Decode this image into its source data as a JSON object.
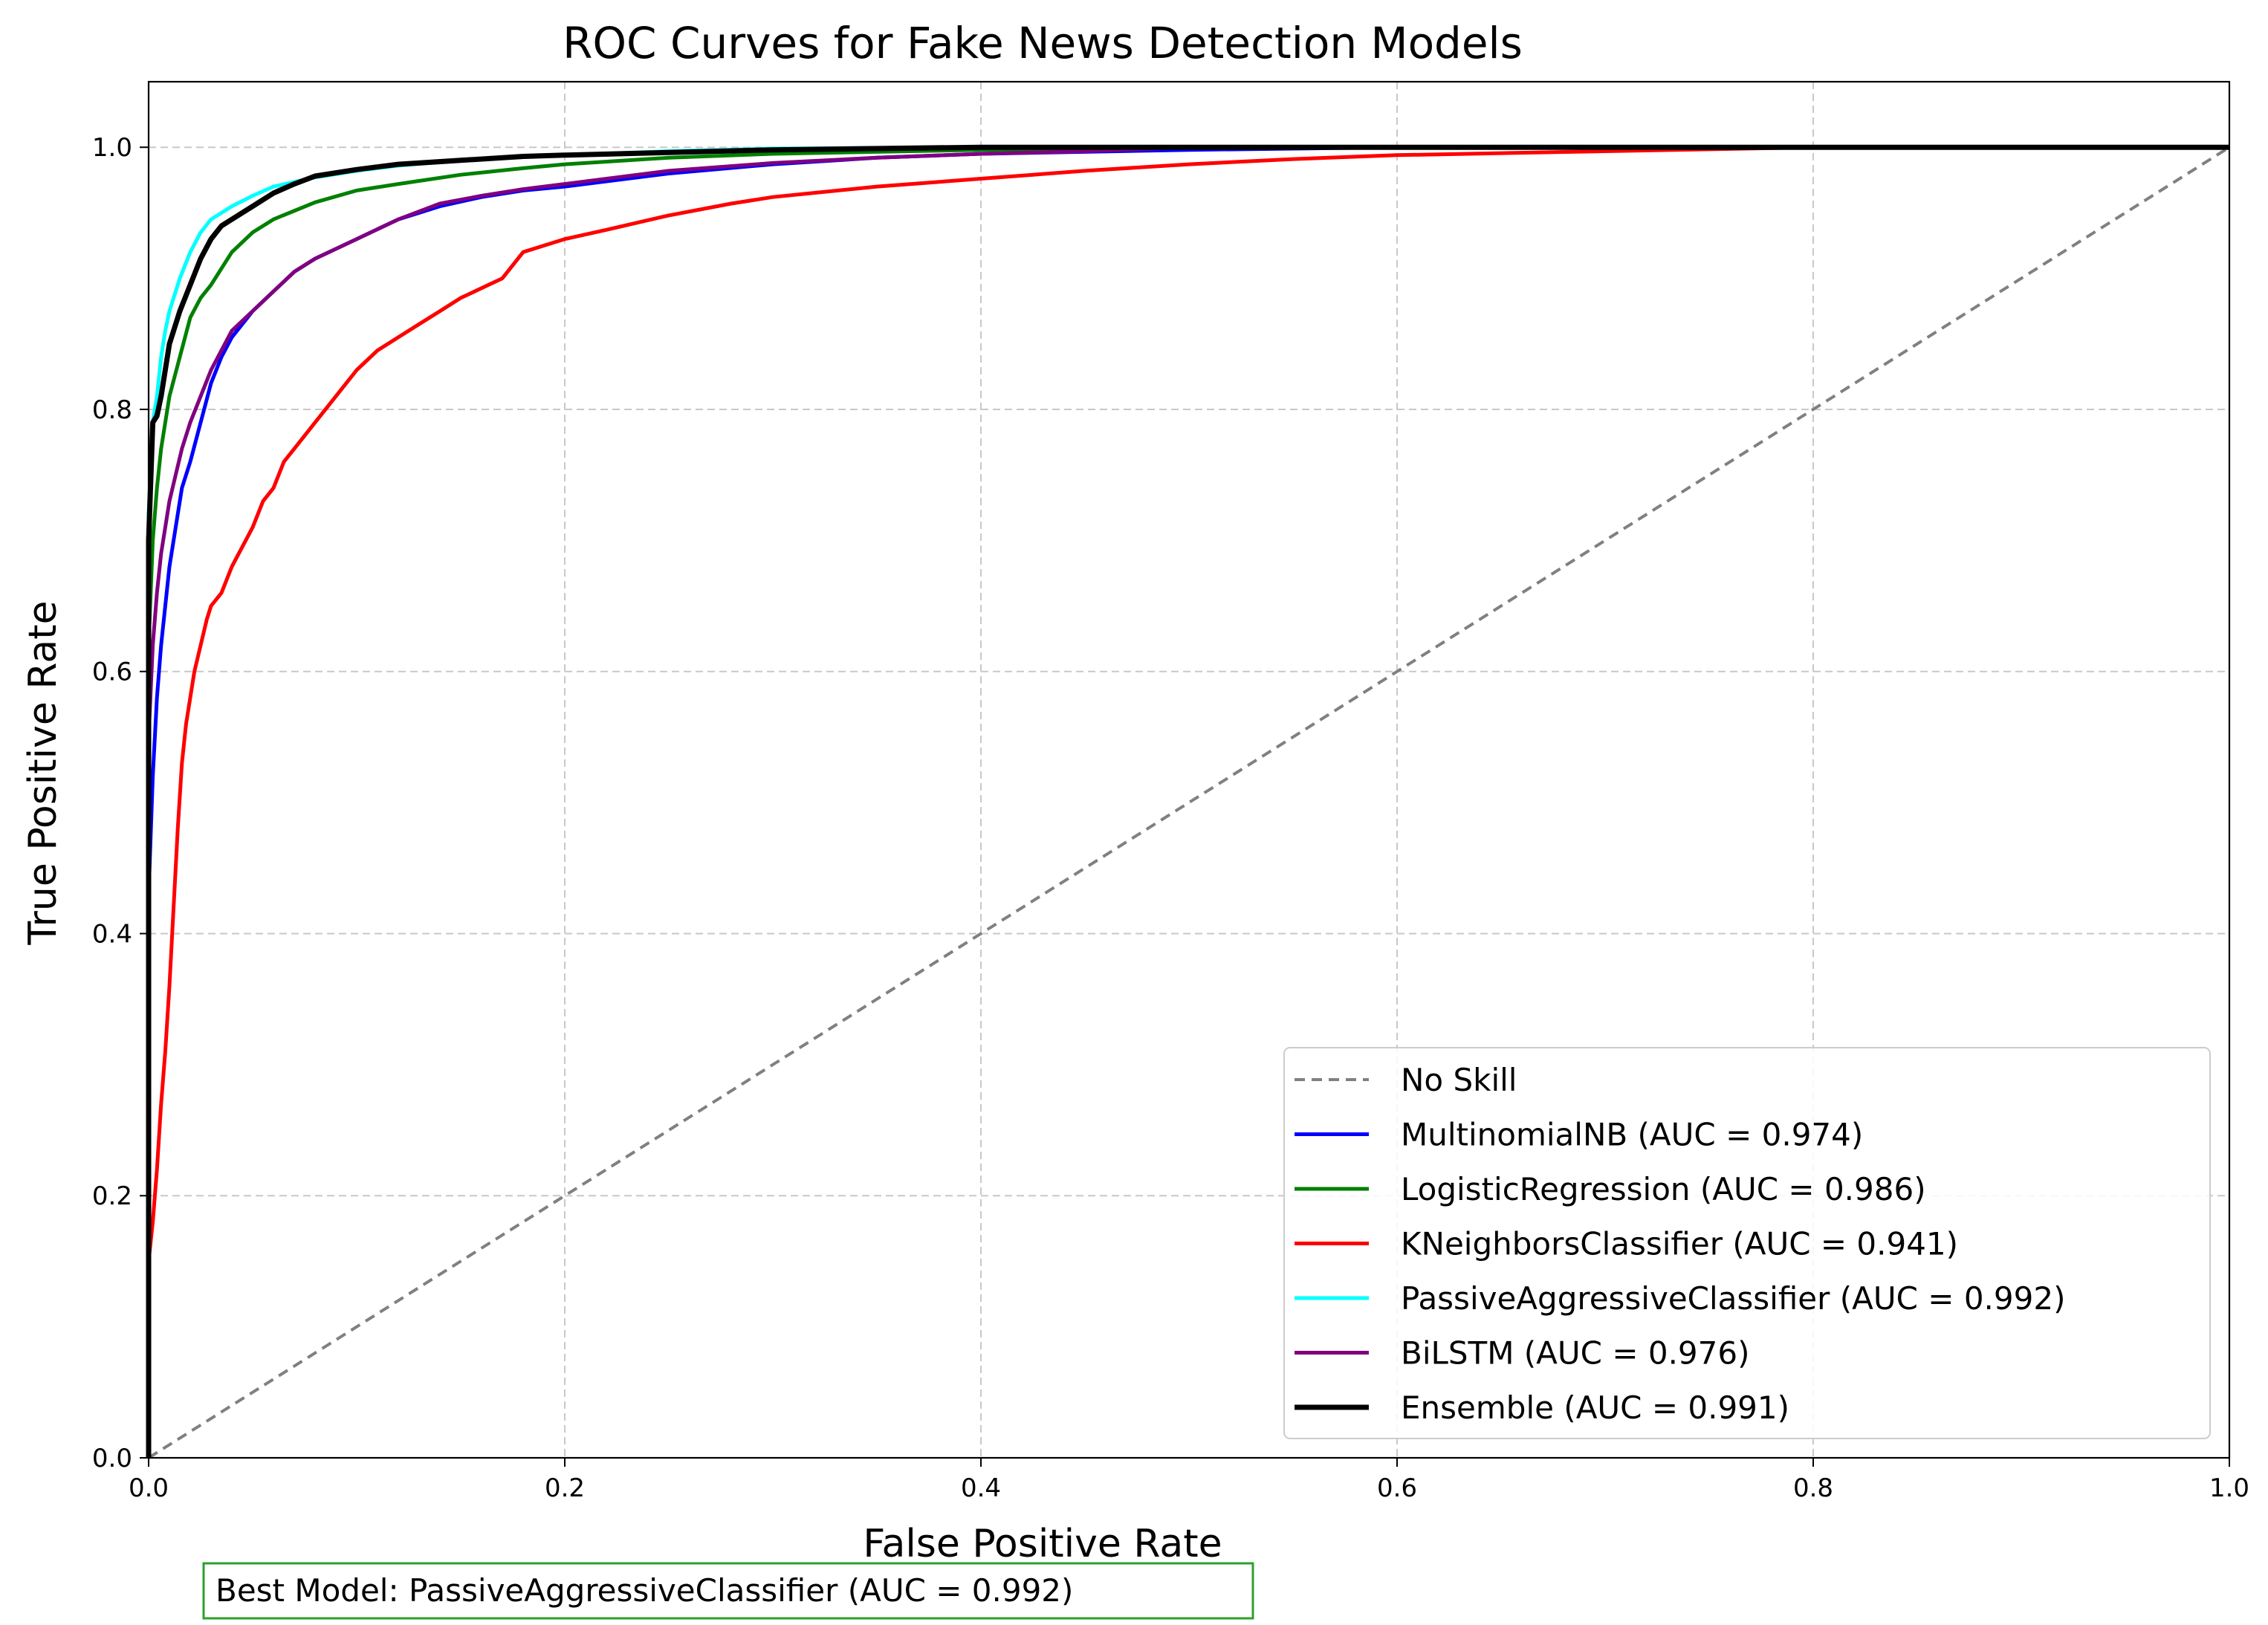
{
  "chart_data": {
    "type": "line",
    "title": "ROC Curves for Fake News Detection Models",
    "xlabel": "False Positive Rate",
    "ylabel": "True Positive Rate",
    "xlim": [
      0.0,
      1.0
    ],
    "ylim": [
      0.0,
      1.05
    ],
    "x_ticks": [
      "0.0",
      "0.2",
      "0.4",
      "0.6",
      "0.8",
      "1.0"
    ],
    "y_ticks": [
      "0.0",
      "0.2",
      "0.4",
      "0.6",
      "0.8",
      "1.0"
    ],
    "grid": true,
    "legend_position": "lower-right",
    "series": [
      {
        "name": "No Skill",
        "color": "#808080",
        "style": "dashed",
        "x": [
          0.0,
          1.0
        ],
        "y": [
          0.0,
          1.0
        ]
      },
      {
        "name": "MultinomialNB (AUC = 0.974)",
        "color": "#0000ff",
        "style": "solid",
        "x": [
          0.0,
          0.0,
          0.002,
          0.004,
          0.006,
          0.008,
          0.01,
          0.013,
          0.016,
          0.02,
          0.025,
          0.03,
          0.035,
          0.04,
          0.05,
          0.06,
          0.07,
          0.08,
          0.1,
          0.12,
          0.14,
          0.16,
          0.18,
          0.2,
          0.25,
          0.3,
          0.35,
          0.4,
          0.5,
          0.6,
          1.0
        ],
        "y": [
          0.0,
          0.43,
          0.52,
          0.58,
          0.62,
          0.65,
          0.68,
          0.71,
          0.74,
          0.76,
          0.79,
          0.82,
          0.84,
          0.855,
          0.875,
          0.89,
          0.905,
          0.915,
          0.93,
          0.945,
          0.955,
          0.962,
          0.967,
          0.97,
          0.98,
          0.987,
          0.992,
          0.995,
          0.998,
          1.0,
          1.0
        ]
      },
      {
        "name": "LogisticRegression (AUC = 0.986)",
        "color": "#008000",
        "style": "solid",
        "x": [
          0.0,
          0.0,
          0.002,
          0.004,
          0.006,
          0.008,
          0.01,
          0.015,
          0.02,
          0.025,
          0.03,
          0.04,
          0.05,
          0.06,
          0.08,
          0.1,
          0.12,
          0.15,
          0.18,
          0.2,
          0.25,
          0.3,
          0.4,
          0.5,
          1.0
        ],
        "y": [
          0.0,
          0.62,
          0.7,
          0.74,
          0.77,
          0.79,
          0.81,
          0.84,
          0.87,
          0.885,
          0.895,
          0.92,
          0.935,
          0.945,
          0.958,
          0.967,
          0.972,
          0.979,
          0.984,
          0.987,
          0.992,
          0.995,
          0.998,
          1.0,
          1.0
        ]
      },
      {
        "name": "KNeighborsClassifier (AUC = 0.941)",
        "color": "#ff0000",
        "style": "solid",
        "x": [
          0.0,
          0.0,
          0.002,
          0.004,
          0.006,
          0.008,
          0.01,
          0.012,
          0.014,
          0.016,
          0.018,
          0.02,
          0.022,
          0.025,
          0.028,
          0.03,
          0.035,
          0.04,
          0.05,
          0.055,
          0.06,
          0.065,
          0.07,
          0.08,
          0.09,
          0.1,
          0.11,
          0.12,
          0.13,
          0.14,
          0.15,
          0.17,
          0.175,
          0.18,
          0.2,
          0.22,
          0.25,
          0.28,
          0.3,
          0.35,
          0.4,
          0.45,
          0.5,
          0.55,
          0.6,
          0.7,
          0.8,
          1.0
        ],
        "y": [
          0.0,
          0.15,
          0.18,
          0.22,
          0.27,
          0.31,
          0.36,
          0.42,
          0.48,
          0.53,
          0.56,
          0.58,
          0.6,
          0.62,
          0.64,
          0.65,
          0.66,
          0.68,
          0.71,
          0.73,
          0.74,
          0.76,
          0.77,
          0.79,
          0.81,
          0.83,
          0.845,
          0.855,
          0.865,
          0.875,
          0.885,
          0.9,
          0.91,
          0.92,
          0.93,
          0.937,
          0.948,
          0.957,
          0.962,
          0.97,
          0.976,
          0.982,
          0.987,
          0.991,
          0.994,
          0.997,
          1.0,
          1.0
        ]
      },
      {
        "name": "PassiveAggressiveClassifier (AUC = 0.992)",
        "color": "#00ffff",
        "style": "solid",
        "x": [
          0.0,
          0.0,
          0.002,
          0.004,
          0.006,
          0.008,
          0.01,
          0.015,
          0.02,
          0.025,
          0.03,
          0.04,
          0.05,
          0.06,
          0.08,
          0.1,
          0.12,
          0.15,
          0.2,
          0.25,
          0.3,
          0.4,
          1.0
        ],
        "y": [
          0.0,
          0.72,
          0.79,
          0.81,
          0.84,
          0.86,
          0.875,
          0.9,
          0.92,
          0.935,
          0.945,
          0.955,
          0.963,
          0.97,
          0.977,
          0.982,
          0.986,
          0.99,
          0.994,
          0.997,
          0.999,
          1.0,
          1.0
        ]
      },
      {
        "name": "BiLSTM (AUC = 0.976)",
        "color": "#800080",
        "style": "solid",
        "x": [
          0.0,
          0.0,
          0.002,
          0.004,
          0.006,
          0.008,
          0.01,
          0.013,
          0.016,
          0.02,
          0.025,
          0.03,
          0.035,
          0.04,
          0.05,
          0.06,
          0.07,
          0.08,
          0.1,
          0.12,
          0.14,
          0.16,
          0.18,
          0.2,
          0.25,
          0.3,
          0.35,
          0.4,
          0.45,
          0.5,
          1.0
        ],
        "y": [
          0.0,
          0.55,
          0.62,
          0.66,
          0.69,
          0.71,
          0.73,
          0.75,
          0.77,
          0.79,
          0.81,
          0.83,
          0.845,
          0.86,
          0.875,
          0.89,
          0.905,
          0.915,
          0.93,
          0.945,
          0.957,
          0.963,
          0.968,
          0.972,
          0.982,
          0.988,
          0.992,
          0.995,
          0.997,
          1.0,
          1.0
        ]
      },
      {
        "name": "Ensemble (AUC = 0.991)",
        "color": "#000000",
        "style": "solid",
        "x": [
          0.0,
          0.0,
          0.002,
          0.004,
          0.006,
          0.008,
          0.01,
          0.015,
          0.02,
          0.025,
          0.03,
          0.035,
          0.04,
          0.05,
          0.06,
          0.07,
          0.08,
          0.1,
          0.12,
          0.15,
          0.18,
          0.2,
          0.25,
          0.3,
          0.4,
          1.0
        ],
        "y": [
          0.0,
          0.7,
          0.79,
          0.795,
          0.81,
          0.83,
          0.85,
          0.875,
          0.895,
          0.915,
          0.93,
          0.94,
          0.945,
          0.955,
          0.965,
          0.972,
          0.978,
          0.983,
          0.987,
          0.99,
          0.993,
          0.994,
          0.996,
          0.998,
          1.0,
          1.0
        ]
      }
    ],
    "annotation": {
      "text": "Best Model: PassiveAggressiveClassifier (AUC = 0.992)",
      "border_color": "#2ca02c"
    }
  }
}
